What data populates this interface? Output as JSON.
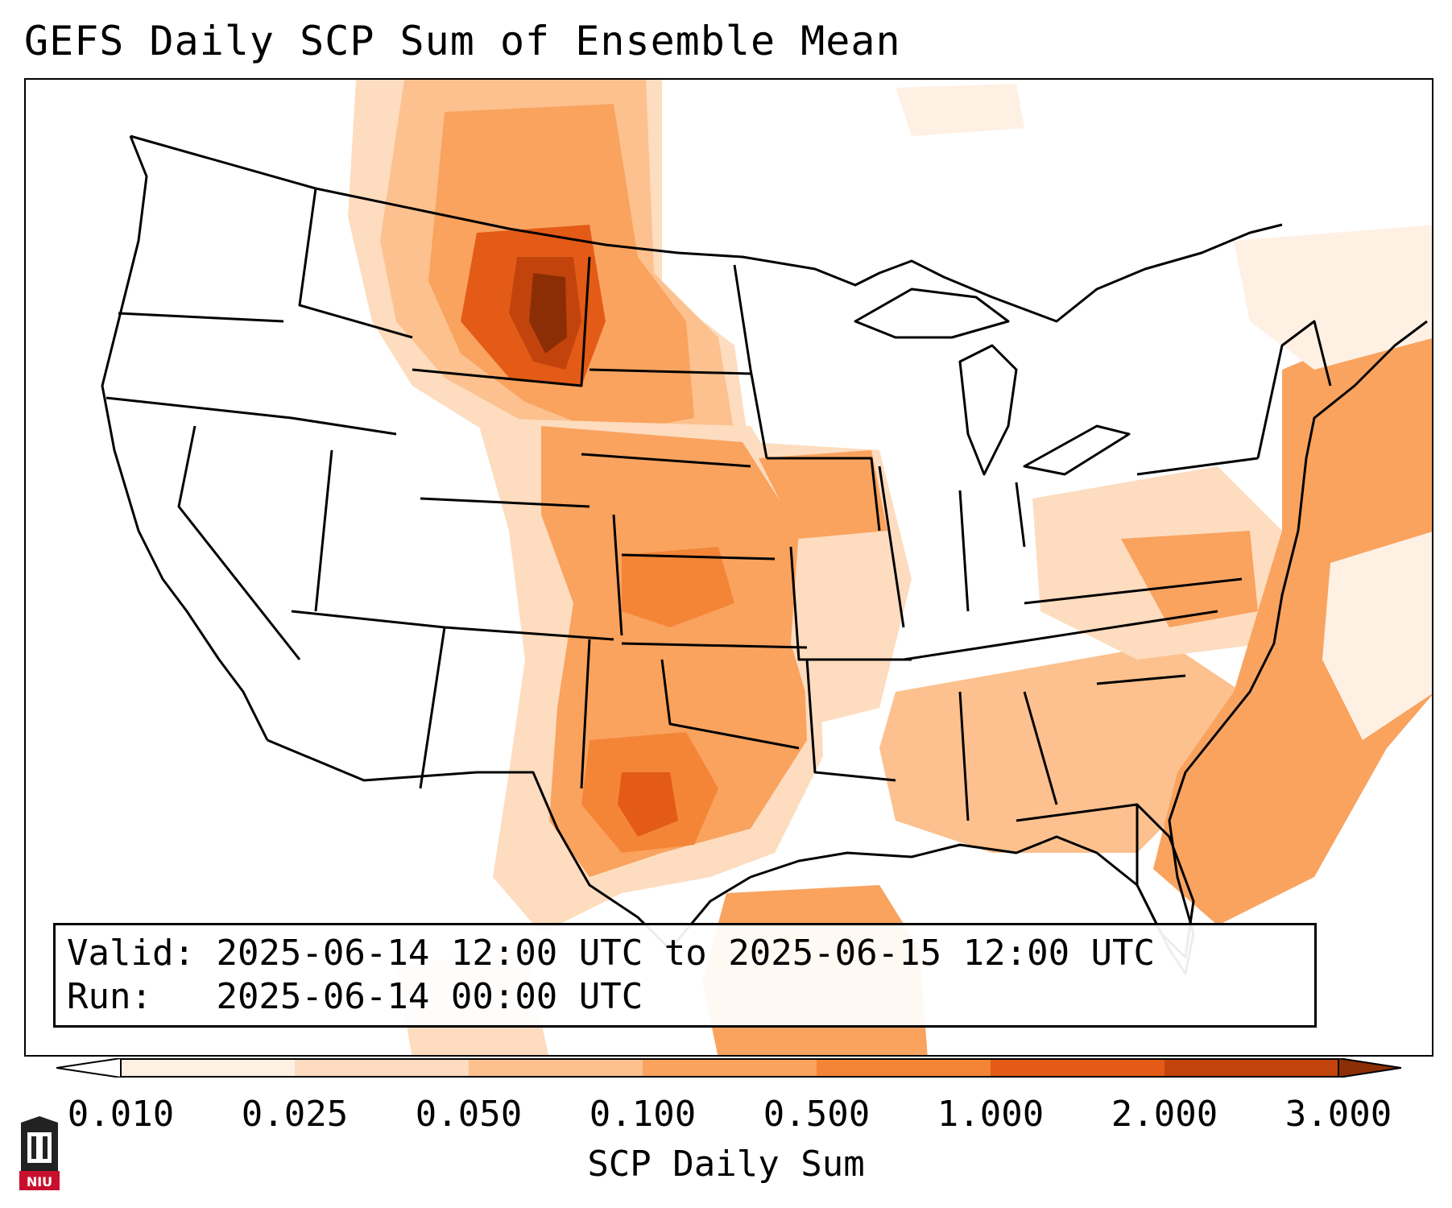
{
  "title": "GEFS Daily SCP Sum of Ensemble Mean",
  "map": {
    "region": "Continental United States",
    "field": "SCP Daily Sum",
    "colors": {
      "level_0": "#fff0e4",
      "level_1": "#fddcbf",
      "level_2": "#fcc18e",
      "level_3": "#f9a35f",
      "level_4": "#f48537",
      "level_5": "#e35b17",
      "level_6": "#c2440c",
      "level_7": "#8c2e05",
      "border": "#000000"
    }
  },
  "info": {
    "valid_label": "Valid:",
    "valid_value": "2025-06-14 12:00 UTC to 2025-06-15 12:00 UTC",
    "run_label": "Run:",
    "run_value": "2025-06-14 00:00 UTC"
  },
  "colorbar": {
    "label": "SCP Daily Sum",
    "ticks": [
      "0.010",
      "0.025",
      "0.050",
      "0.100",
      "0.500",
      "1.000",
      "2.000",
      "3.000"
    ],
    "extend": "both"
  },
  "logo": {
    "text": "NIU",
    "name": "niu-logo-icon"
  }
}
